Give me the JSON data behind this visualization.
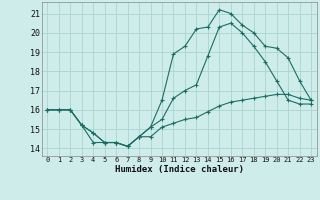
{
  "xlabel": "Humidex (Indice chaleur)",
  "bg_color": "#ceecea",
  "grid_color": "#aad4d0",
  "line_color": "#1a6e65",
  "xlim": [
    -0.5,
    23.5
  ],
  "ylim": [
    13.6,
    21.6
  ],
  "xticks": [
    0,
    1,
    2,
    3,
    4,
    5,
    6,
    7,
    8,
    9,
    10,
    11,
    12,
    13,
    14,
    15,
    16,
    17,
    18,
    19,
    20,
    21,
    22,
    23
  ],
  "yticks": [
    14,
    15,
    16,
    17,
    18,
    19,
    20,
    21
  ],
  "line1_x": [
    0,
    1,
    2,
    3,
    4,
    5,
    6,
    7,
    8,
    9,
    10,
    11,
    12,
    13,
    14,
    15,
    16,
    17,
    18,
    19,
    20,
    21,
    22,
    23
  ],
  "line1_y": [
    16.0,
    16.0,
    16.0,
    15.2,
    14.3,
    14.3,
    14.3,
    14.1,
    14.6,
    14.6,
    15.1,
    15.3,
    15.5,
    15.6,
    15.9,
    16.2,
    16.4,
    16.5,
    16.6,
    16.7,
    16.8,
    16.8,
    16.6,
    16.5
  ],
  "line2_x": [
    0,
    1,
    2,
    3,
    4,
    5,
    6,
    7,
    8,
    9,
    10,
    11,
    12,
    13,
    14,
    15,
    16,
    17,
    18,
    19,
    20,
    21,
    22,
    23
  ],
  "line2_y": [
    16.0,
    16.0,
    16.0,
    15.2,
    14.8,
    14.3,
    14.3,
    14.1,
    14.6,
    15.1,
    15.5,
    16.6,
    17.0,
    17.3,
    18.8,
    20.3,
    20.5,
    20.0,
    19.3,
    18.5,
    17.5,
    16.5,
    16.3,
    16.3
  ],
  "line3_x": [
    0,
    1,
    2,
    3,
    4,
    5,
    6,
    7,
    8,
    9,
    10,
    11,
    12,
    13,
    14,
    15,
    16,
    17,
    18,
    19,
    20,
    21,
    22,
    23
  ],
  "line3_y": [
    16.0,
    16.0,
    16.0,
    15.2,
    14.8,
    14.3,
    14.3,
    14.1,
    14.6,
    15.1,
    16.5,
    18.9,
    19.3,
    20.2,
    20.3,
    21.2,
    21.0,
    20.4,
    20.0,
    19.3,
    19.2,
    18.7,
    17.5,
    16.5
  ]
}
